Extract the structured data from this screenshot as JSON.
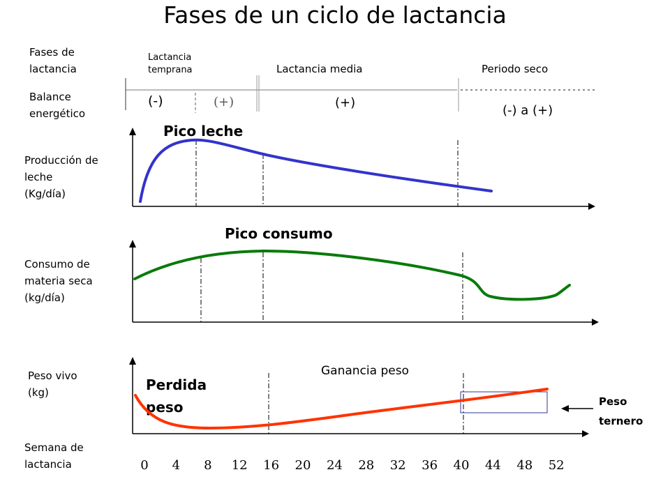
{
  "title": "Fases de un ciclo de lactancia",
  "rows": {
    "phases_label": [
      "Fases de",
      "lactancia"
    ],
    "balance_label": [
      "Balance",
      "energético"
    ],
    "milk_label": [
      "Producción de",
      "leche",
      "(Kg/día)"
    ],
    "intake_label": [
      "Consumo de",
      "materia seca",
      "(kg/día)"
    ],
    "weight_label": [
      "Peso vivo",
      "(kg)"
    ],
    "week_label": [
      "Semana de",
      "lactancia"
    ]
  },
  "phases": {
    "early": [
      "Lactancia",
      "temprana"
    ],
    "mid": "Lactancia media",
    "dry": "Periodo seco"
  },
  "balance": {
    "early_negative": "(-)",
    "early_positive": "(+)",
    "mid": "(+)",
    "dry": "(-) a (+)"
  },
  "annotations": {
    "milk_peak": "Pico leche",
    "intake_peak": "Pico consumo",
    "weight_loss": [
      "Perdida",
      "peso"
    ],
    "weight_gain": "Ganancia peso",
    "calf_weight": [
      "Peso",
      "ternero"
    ]
  },
  "weeks": [
    "0",
    "4",
    "8",
    "12",
    "16",
    "20",
    "24",
    "28",
    "32",
    "36",
    "40",
    "44",
    "48",
    "52"
  ],
  "colors": {
    "milk": "#3333cc",
    "intake": "#0a7a0a",
    "weight": "#ff3300",
    "calf_box": "#333399",
    "balance_positive": "#555555"
  }
}
